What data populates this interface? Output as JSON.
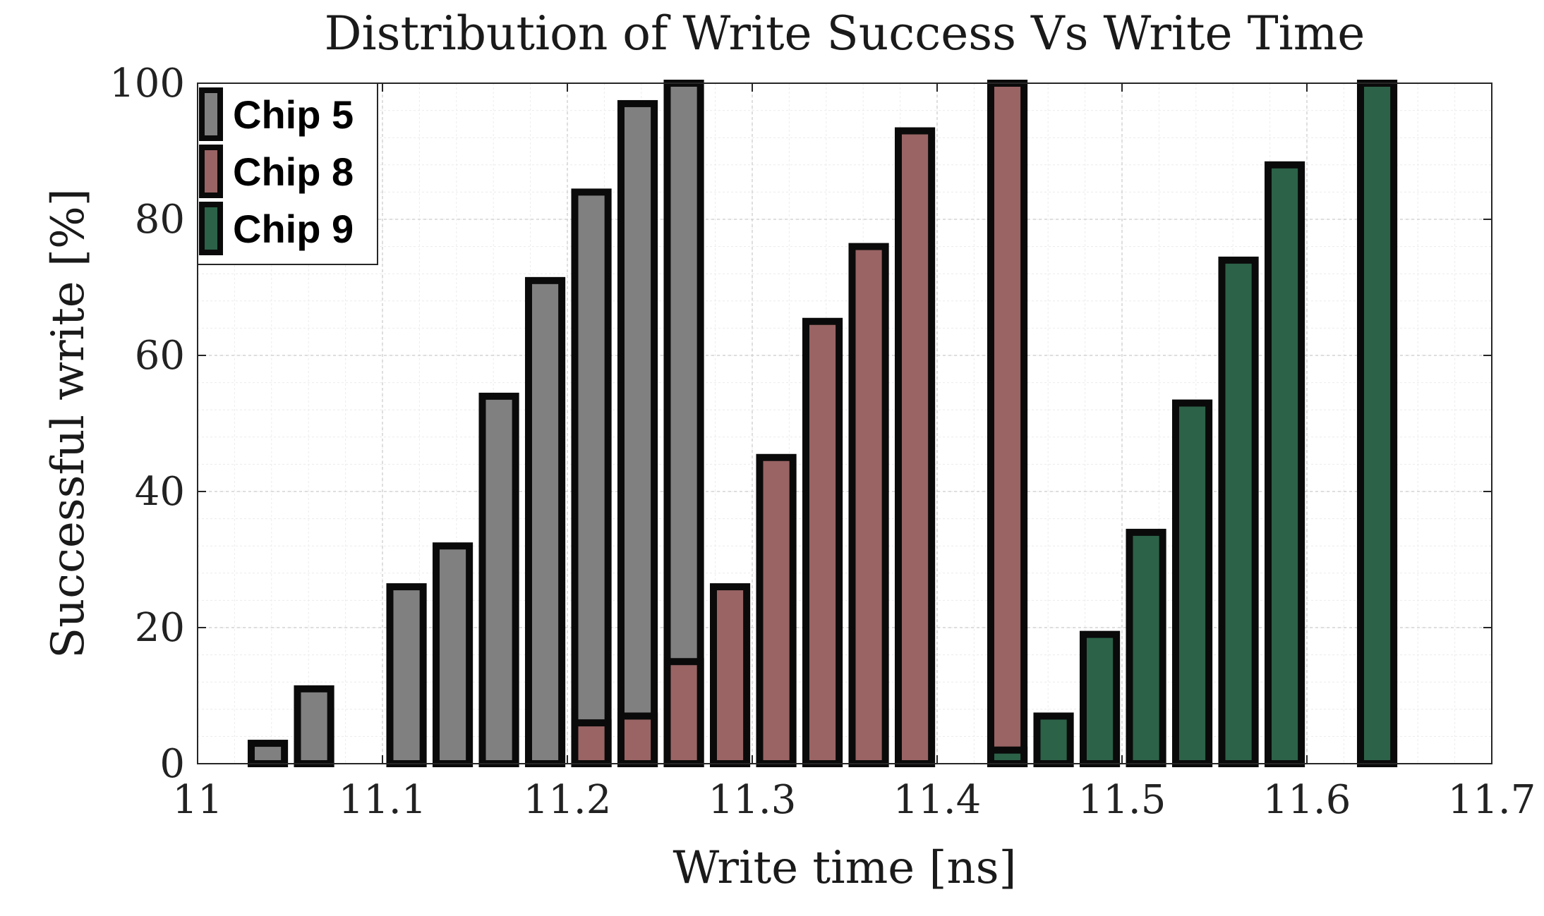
{
  "chart_data": {
    "type": "bar",
    "title": "Distribution of Write Success Vs Write Time",
    "xlabel": "Write time [ns]",
    "ylabel": "Successful write [%]",
    "xlim": [
      11,
      11.7
    ],
    "ylim": [
      0,
      100
    ],
    "xticks": [
      "11",
      "11.1",
      "11.2",
      "11.3",
      "11.4",
      "11.5",
      "11.6",
      "11.7"
    ],
    "yticks": [
      "0",
      "20",
      "40",
      "60",
      "80",
      "100"
    ],
    "grid": true,
    "legend_position": "top-left",
    "series": [
      {
        "name": "Chip 5",
        "color": "#808080",
        "x": [
          11.038,
          11.063,
          11.113,
          11.138,
          11.163,
          11.188,
          11.213,
          11.238,
          11.263
        ],
        "values": [
          3,
          11,
          26,
          32,
          54,
          71,
          84,
          97,
          100
        ]
      },
      {
        "name": "Chip 8",
        "color": "#9a6464",
        "x": [
          11.213,
          11.238,
          11.263,
          11.288,
          11.313,
          11.338,
          11.363,
          11.388,
          11.438
        ],
        "values": [
          6,
          7,
          15,
          26,
          45,
          65,
          76,
          93,
          100
        ]
      },
      {
        "name": "Chip 9",
        "color": "#2c6248",
        "x": [
          11.438,
          11.463,
          11.488,
          11.513,
          11.538,
          11.563,
          11.588,
          11.638
        ],
        "values": [
          2,
          7,
          19,
          34,
          53,
          74,
          88,
          100
        ]
      }
    ]
  }
}
